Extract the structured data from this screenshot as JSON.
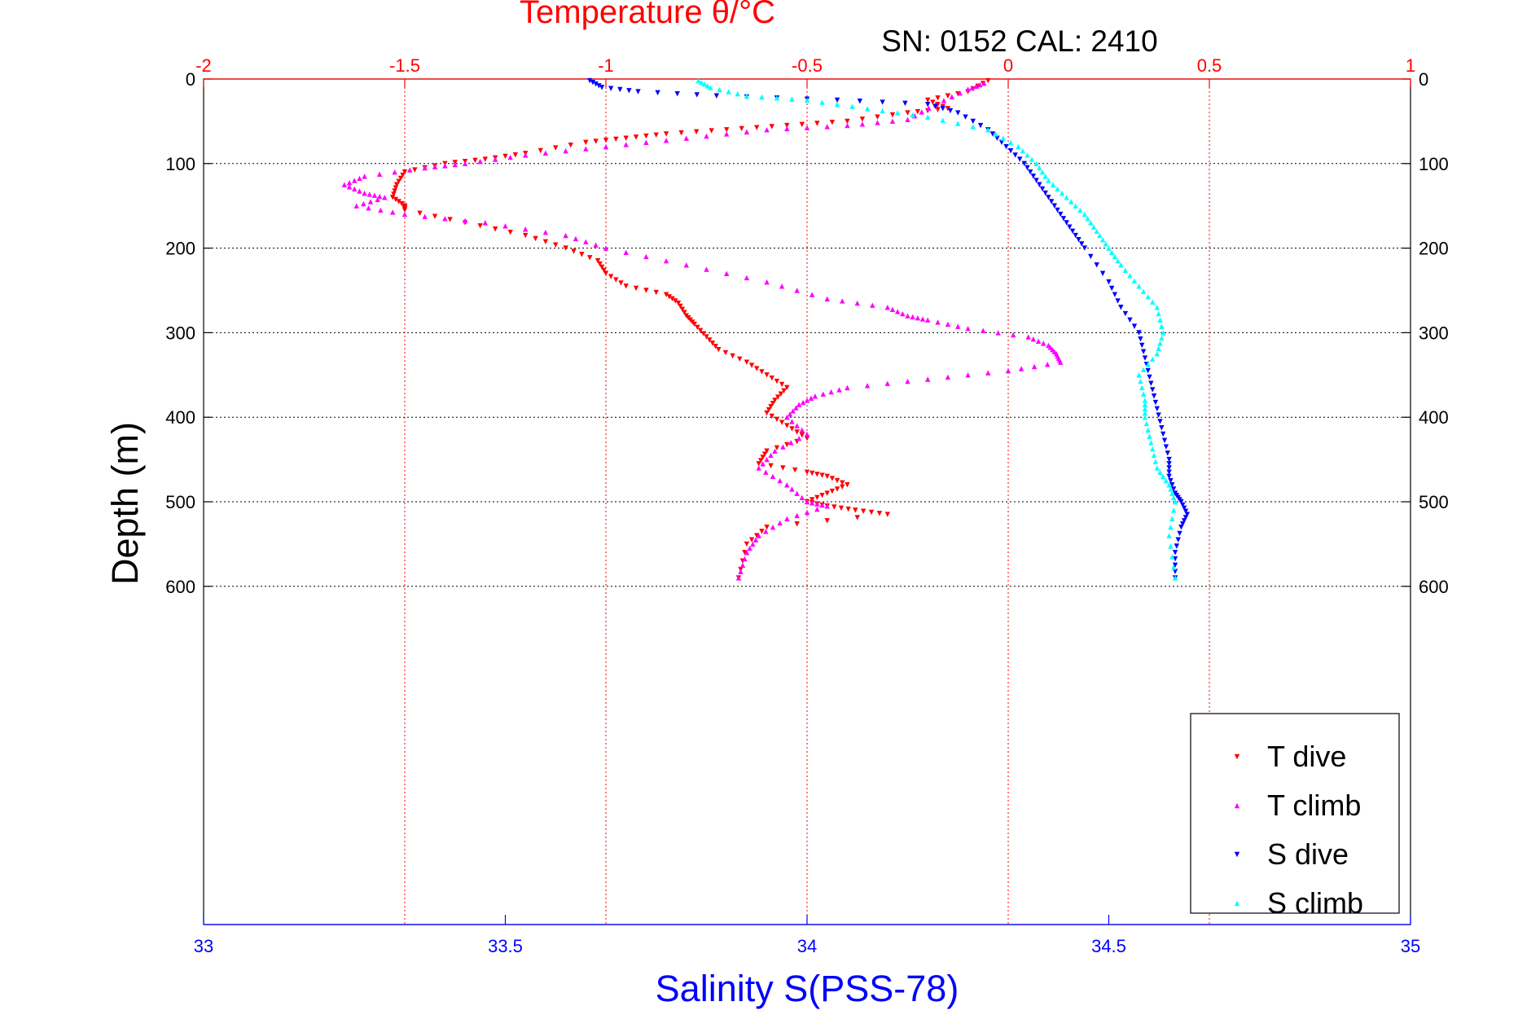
{
  "colors": {
    "temperature_axis": "#ff0000",
    "salinity_axis": "#0000ff",
    "t_dive": "#ff0000",
    "t_climb": "#ff00ff",
    "s_dive": "#0000ff",
    "s_climb": "#00ffff",
    "frame": "#000000",
    "grid": "#000000"
  },
  "chart_data": {
    "type": "scatter",
    "title": "Temperature θ/°C",
    "subtitle": "SN: 0152  CAL: 2410",
    "xlabel_top": "Temperature θ/°C",
    "xlabel_bottom": "Salinity S(PSS-78)",
    "ylabel": "Depth (m)",
    "y_reversed": true,
    "ylim": [
      0,
      1000
    ],
    "y_ticks": [
      0,
      100,
      200,
      300,
      400,
      500,
      600
    ],
    "y_tick_labels": [
      "0",
      "100",
      "200",
      "300",
      "400",
      "500",
      "600"
    ],
    "temperature_axis": {
      "xlim": [
        -2,
        1
      ],
      "ticks": [
        -2,
        -1.5,
        -1,
        -0.5,
        0,
        0.5,
        1
      ],
      "tick_labels": [
        "-2",
        "-1.5",
        "-1",
        "-0.5",
        "0",
        "0.5",
        "1"
      ]
    },
    "salinity_axis": {
      "xlim": [
        33,
        35
      ],
      "ticks": [
        33,
        33.5,
        34,
        34.5,
        35
      ],
      "tick_labels": [
        "33",
        "33.5",
        "34",
        "34.5",
        "35"
      ]
    },
    "grid": true,
    "legend_position": "bottom-right",
    "series": [
      {
        "name": "T dive",
        "axis": "temperature",
        "marker": "triangle-down",
        "x": [
          -0.05,
          -0.1,
          -0.2,
          -0.15,
          -0.25,
          -0.4,
          -0.55,
          -0.7,
          -0.85,
          -0.95,
          -1.05,
          -1.2,
          -1.3,
          -1.4,
          -1.5,
          -1.52,
          -1.53,
          -1.5,
          -1.5,
          -1.35,
          -1.2,
          -1.1,
          -1.02,
          -1.0,
          -0.95,
          -0.85,
          -0.82,
          -0.8,
          -0.78,
          -0.75,
          -0.72,
          -0.65,
          -0.6,
          -0.55,
          -0.58,
          -0.6,
          -0.55,
          -0.5,
          -0.6,
          -0.62,
          -0.5,
          -0.45,
          -0.4,
          -0.45,
          -0.5,
          -0.45,
          -0.38,
          -0.3,
          -0.6,
          -0.65,
          -0.67
        ],
        "y": [
          2,
          15,
          25,
          35,
          40,
          50,
          55,
          60,
          65,
          70,
          75,
          88,
          95,
          100,
          110,
          125,
          140,
          150,
          155,
          170,
          185,
          200,
          215,
          230,
          245,
          255,
          265,
          280,
          290,
          305,
          320,
          335,
          350,
          365,
          380,
          395,
          410,
          425,
          440,
          455,
          465,
          470,
          480,
          490,
          500,
          505,
          510,
          515,
          530,
          550,
          590
        ]
      },
      {
        "name": "T climb",
        "axis": "temperature",
        "marker": "triangle-up",
        "x": [
          -0.06,
          -0.1,
          -0.18,
          -0.25,
          -0.4,
          -0.6,
          -0.8,
          -1.0,
          -1.2,
          -1.35,
          -1.45,
          -1.6,
          -1.65,
          -1.6,
          -1.55,
          -1.62,
          -1.5,
          -1.3,
          -1.1,
          -1.0,
          -0.8,
          -0.6,
          -0.45,
          -0.3,
          -0.25,
          -0.2,
          -0.1,
          0.05,
          0.1,
          0.12,
          0.13,
          0.0,
          -0.2,
          -0.4,
          -0.48,
          -0.52,
          -0.55,
          -0.5,
          -0.58,
          -0.62,
          -0.55,
          -0.5,
          -0.45,
          -0.55,
          -0.62,
          -0.65,
          -0.67
        ],
        "y": [
          5,
          12,
          30,
          48,
          55,
          60,
          70,
          80,
          90,
          100,
          105,
          115,
          125,
          135,
          140,
          150,
          160,
          170,
          185,
          200,
          220,
          240,
          260,
          270,
          280,
          285,
          295,
          305,
          315,
          325,
          335,
          345,
          355,
          365,
          375,
          385,
          400,
          420,
          440,
          460,
          480,
          500,
          505,
          520,
          540,
          560,
          590
        ]
      },
      {
        "name": "S dive",
        "axis": "salinity",
        "marker": "triangle-down",
        "x": [
          33.64,
          33.66,
          33.72,
          33.85,
          34.05,
          34.2,
          34.25,
          34.3,
          34.33,
          34.36,
          34.38,
          34.4,
          34.42,
          34.44,
          34.46,
          34.5,
          34.52,
          34.55,
          34.56,
          34.57,
          34.58,
          34.59,
          34.6,
          34.6,
          34.61,
          34.62,
          34.63,
          34.62,
          34.61,
          34.61
        ],
        "y": [
          2,
          10,
          15,
          20,
          25,
          30,
          40,
          60,
          80,
          100,
          120,
          140,
          160,
          180,
          200,
          240,
          270,
          300,
          330,
          360,
          390,
          420,
          450,
          470,
          490,
          500,
          515,
          530,
          560,
          590
        ]
      },
      {
        "name": "S climb",
        "axis": "salinity",
        "marker": "triangle-up",
        "x": [
          33.82,
          33.84,
          33.9,
          34.0,
          34.1,
          34.2,
          34.3,
          34.35,
          34.38,
          34.4,
          34.43,
          34.46,
          34.48,
          34.5,
          34.52,
          34.55,
          34.58,
          34.59,
          34.58,
          34.55,
          34.56,
          34.56,
          34.57,
          34.58,
          34.6,
          34.61,
          34.6,
          34.61
        ],
        "y": [
          2,
          10,
          20,
          25,
          35,
          45,
          60,
          80,
          100,
          120,
          140,
          160,
          180,
          200,
          220,
          245,
          270,
          300,
          325,
          350,
          380,
          400,
          430,
          460,
          480,
          500,
          540,
          590
        ]
      }
    ]
  }
}
